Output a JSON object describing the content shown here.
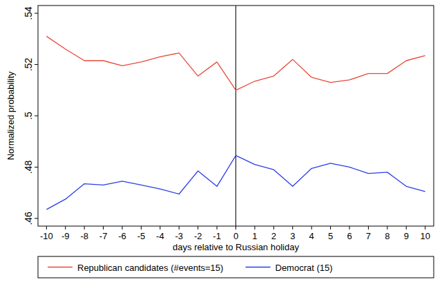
{
  "chart_data": {
    "type": "line",
    "x_label": "days relative to Russian holiday",
    "y_label": "Normalized probability",
    "x": [
      -10,
      -9,
      -8,
      -7,
      -6,
      -5,
      -4,
      -3,
      -2,
      -1,
      0,
      1,
      2,
      3,
      4,
      5,
      6,
      7,
      8,
      9,
      10
    ],
    "series": [
      {
        "name": "Republican candidates (#events=15)",
        "color": "#e8483a",
        "values": [
          0.531,
          0.526,
          0.5215,
          0.5215,
          0.5195,
          0.521,
          0.523,
          0.5245,
          0.5155,
          0.521,
          0.51,
          0.5135,
          0.5155,
          0.522,
          0.515,
          0.513,
          0.514,
          0.5165,
          0.5165,
          0.5215,
          0.5235
        ]
      },
      {
        "name": "Democrat (15)",
        "color": "#2b3ce6",
        "values": [
          0.4635,
          0.4675,
          0.4735,
          0.473,
          0.4745,
          0.473,
          0.4715,
          0.4695,
          0.4785,
          0.4725,
          0.4845,
          0.481,
          0.479,
          0.4725,
          0.4795,
          0.4815,
          0.48,
          0.4775,
          0.478,
          0.4725,
          0.4705
        ]
      }
    ],
    "xlim": [
      -10.45,
      10.45
    ],
    "xticks": [
      -10,
      -9,
      -8,
      -7,
      -6,
      -5,
      -4,
      -3,
      -2,
      -1,
      0,
      1,
      2,
      3,
      4,
      5,
      6,
      7,
      8,
      9,
      10
    ],
    "ylim": [
      0.457,
      0.543
    ],
    "yticks": [
      {
        "value": 0.46,
        "label": ".46"
      },
      {
        "value": 0.48,
        "label": ".48"
      },
      {
        "value": 0.5,
        "label": ".5"
      },
      {
        "value": 0.52,
        "label": ".52"
      },
      {
        "value": 0.54,
        "label": ".54"
      }
    ],
    "vlines": [
      0
    ],
    "grid": false,
    "legend": "bottom"
  }
}
